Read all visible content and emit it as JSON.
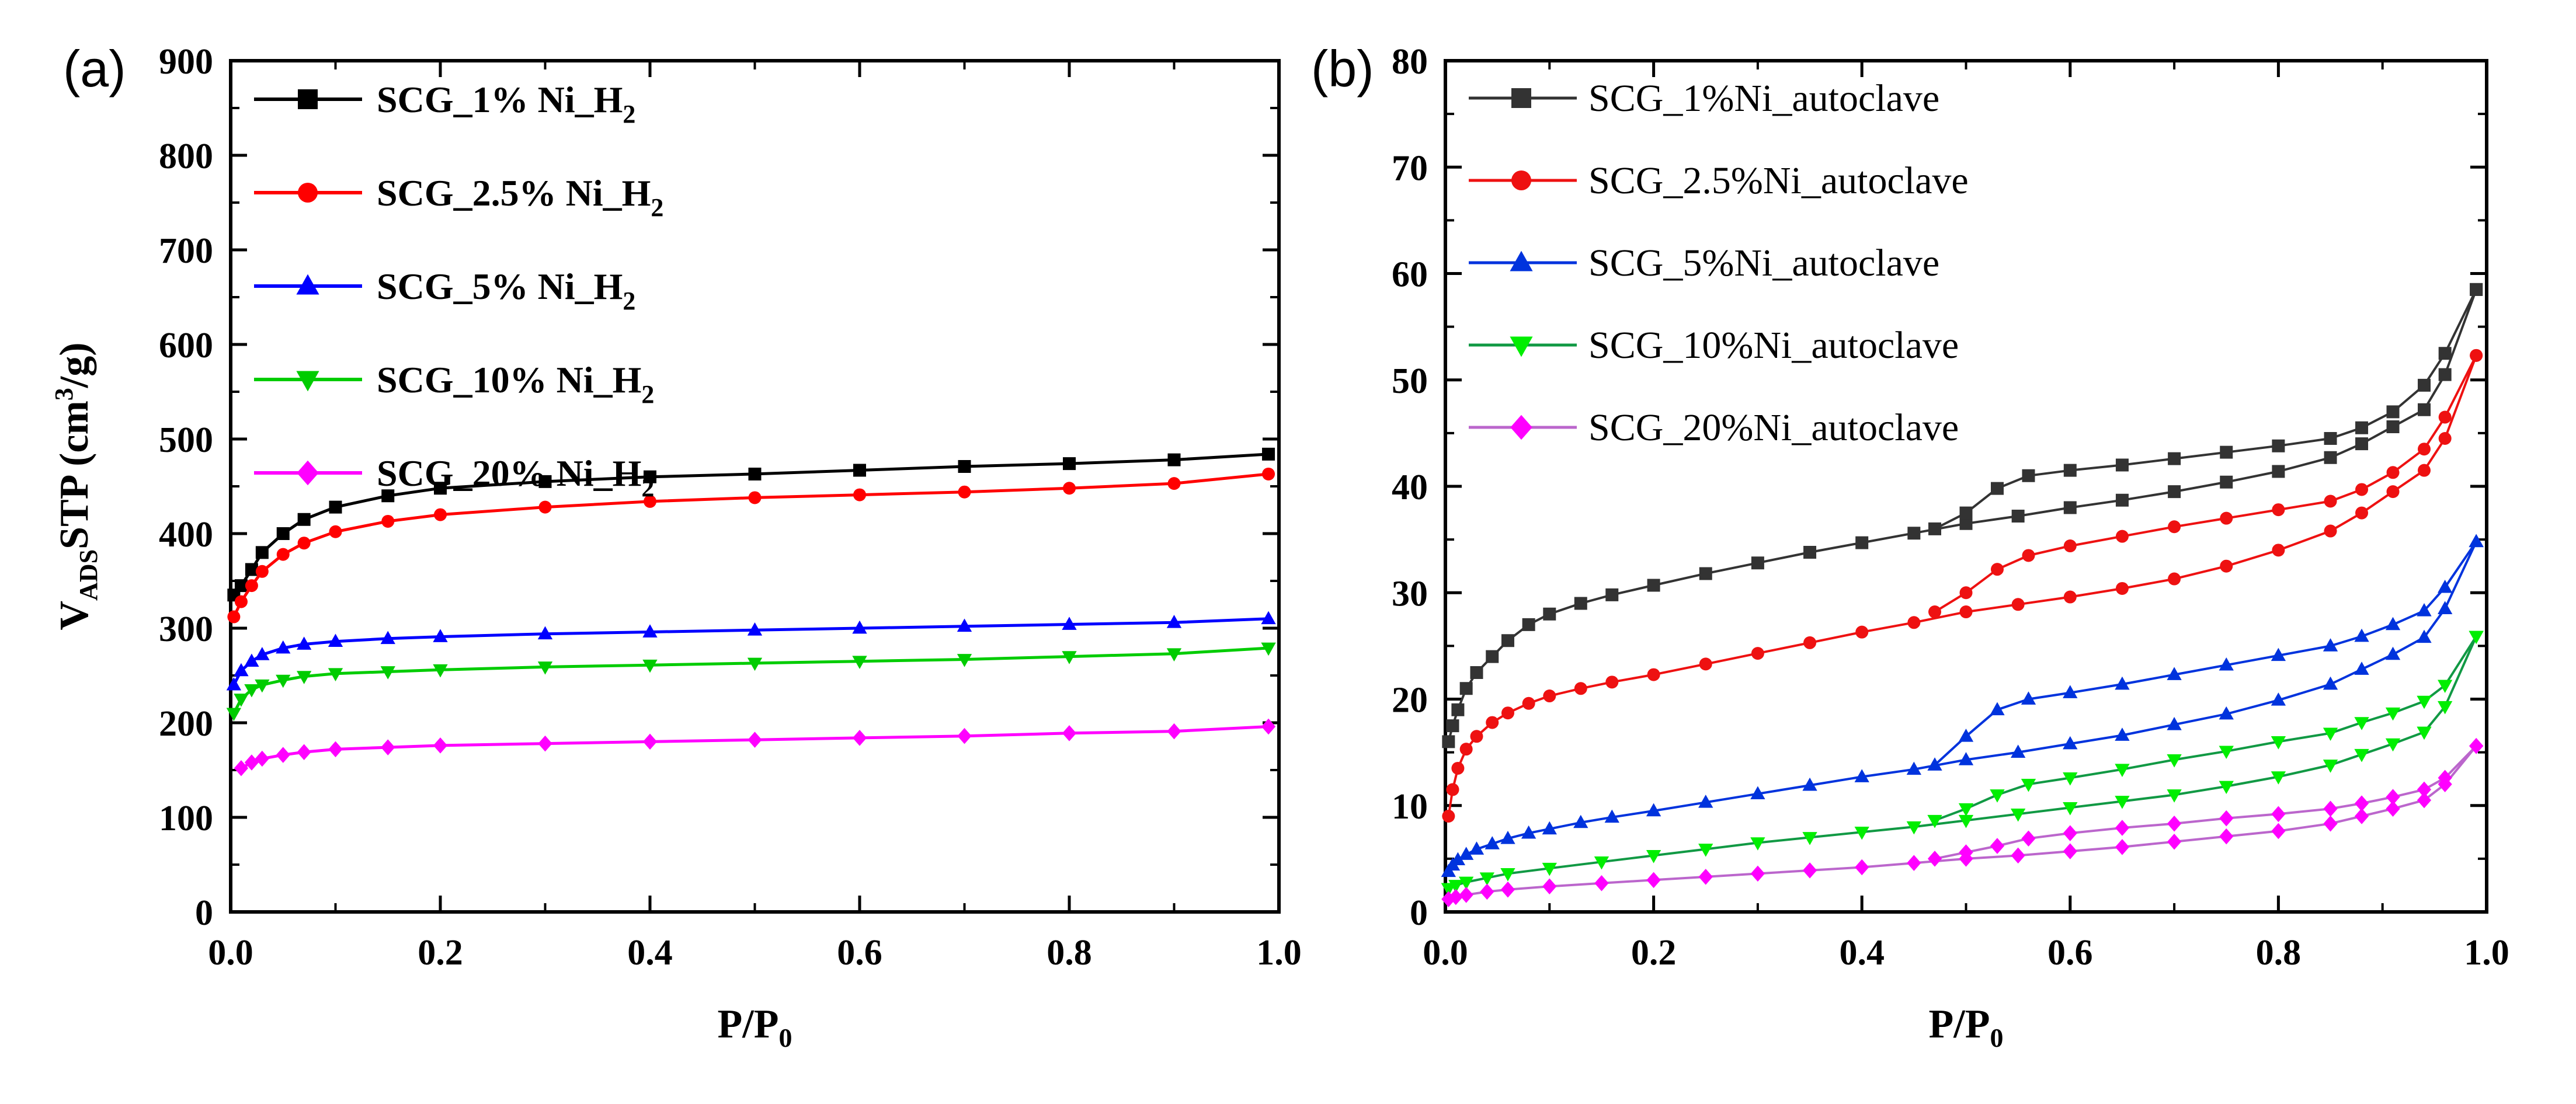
{
  "chart_data": [
    {
      "type": "line",
      "panel_label": "(a)",
      "xlabel": {
        "main": "P/P",
        "sub": "0"
      },
      "ylabel": {
        "v": "V",
        "sub": "ADS",
        "main": "STP (cm",
        "sup": "3",
        "end": "/g)"
      },
      "xlim": [
        0,
        1.0
      ],
      "ylim": [
        0,
        900
      ],
      "xticks": [
        0,
        0.2,
        0.4,
        0.6,
        0.8,
        1.0
      ],
      "xtick_labels": [
        "0.0",
        "0.2",
        "0.4",
        "0.6",
        "0.8",
        "1.0"
      ],
      "yticks": [
        0,
        100,
        200,
        300,
        400,
        500,
        600,
        700,
        800,
        900
      ],
      "ytick_labels": [
        "0",
        "100",
        "200",
        "300",
        "400",
        "500",
        "600",
        "700",
        "800",
        "900"
      ],
      "legend_position": "top-left",
      "series": [
        {
          "name": "SCG_1% Ni_H",
          "name_sub": "2",
          "color": "#000000",
          "marker": "square",
          "x": [
            0.003,
            0.01,
            0.02,
            0.03,
            0.05,
            0.07,
            0.1,
            0.15,
            0.2,
            0.3,
            0.4,
            0.5,
            0.6,
            0.7,
            0.8,
            0.9,
            0.99
          ],
          "y": [
            335,
            345,
            362,
            380,
            400,
            415,
            428,
            440,
            448,
            455,
            460,
            463,
            467,
            471,
            474,
            478,
            484
          ]
        },
        {
          "name": "SCG_2.5% Ni_H",
          "name_sub": "2",
          "color": "#ff0000",
          "marker": "circle",
          "x": [
            0.003,
            0.01,
            0.02,
            0.03,
            0.05,
            0.07,
            0.1,
            0.15,
            0.2,
            0.3,
            0.4,
            0.5,
            0.6,
            0.7,
            0.8,
            0.9,
            0.99
          ],
          "y": [
            312,
            328,
            345,
            360,
            378,
            390,
            402,
            413,
            420,
            428,
            434,
            438,
            441,
            444,
            448,
            453,
            463
          ]
        },
        {
          "name": "SCG_5% Ni_H",
          "name_sub": "2",
          "color": "#0000ff",
          "marker": "triangle-up",
          "x": [
            0.003,
            0.01,
            0.02,
            0.03,
            0.05,
            0.07,
            0.1,
            0.15,
            0.2,
            0.3,
            0.4,
            0.5,
            0.6,
            0.7,
            0.8,
            0.9,
            0.99
          ],
          "y": [
            240,
            255,
            265,
            272,
            279,
            283,
            286,
            289,
            291,
            294,
            296,
            298,
            300,
            302,
            304,
            306,
            310
          ]
        },
        {
          "name": "SCG_10% Ni_H",
          "name_sub": "2",
          "color": "#00cc00",
          "marker": "triangle-down",
          "x": [
            0.003,
            0.01,
            0.02,
            0.03,
            0.05,
            0.07,
            0.1,
            0.15,
            0.2,
            0.3,
            0.4,
            0.5,
            0.6,
            0.7,
            0.8,
            0.9,
            0.99
          ],
          "y": [
            210,
            225,
            235,
            240,
            245,
            249,
            252,
            254,
            256,
            259,
            261,
            263,
            265,
            267,
            270,
            273,
            279
          ]
        },
        {
          "name": "SCG_20% Ni_H",
          "name_sub": "2",
          "color": "#ff00ff",
          "marker": "diamond",
          "x": [
            0.01,
            0.02,
            0.03,
            0.05,
            0.07,
            0.1,
            0.15,
            0.2,
            0.3,
            0.4,
            0.5,
            0.6,
            0.7,
            0.8,
            0.9,
            0.99
          ],
          "y": [
            152,
            158,
            162,
            166,
            169,
            172,
            174,
            176,
            178,
            180,
            182,
            184,
            186,
            189,
            191,
            196
          ]
        }
      ]
    },
    {
      "type": "line",
      "panel_label": "(b)",
      "xlabel": {
        "main": "P/P",
        "sub": "0"
      },
      "xlim": [
        0,
        1.0
      ],
      "ylim": [
        0,
        80
      ],
      "xticks": [
        0,
        0.2,
        0.4,
        0.6,
        0.8,
        1.0
      ],
      "xtick_labels": [
        "0.0",
        "0.2",
        "0.4",
        "0.6",
        "0.8",
        "1.0"
      ],
      "yticks": [
        0,
        10,
        20,
        30,
        40,
        50,
        60,
        70,
        80
      ],
      "ytick_labels": [
        "0",
        "10",
        "20",
        "30",
        "40",
        "50",
        "60",
        "70",
        "80"
      ],
      "legend_position": "top-left",
      "series": [
        {
          "name": "SCG_1%Ni_autoclave",
          "color": "#333333",
          "marker": "square",
          "adsorption": {
            "x": [
              0.003,
              0.007,
              0.012,
              0.02,
              0.03,
              0.045,
              0.06,
              0.08,
              0.1,
              0.13,
              0.16,
              0.2,
              0.25,
              0.3,
              0.35,
              0.4,
              0.45,
              0.5,
              0.55,
              0.6,
              0.65,
              0.7,
              0.75,
              0.8,
              0.85,
              0.88,
              0.91,
              0.94,
              0.96,
              0.99
            ],
            "y": [
              16,
              17.5,
              19,
              21,
              22.5,
              24,
              25.5,
              27,
              28,
              29,
              29.8,
              30.7,
              31.8,
              32.8,
              33.8,
              34.7,
              35.6,
              36.5,
              37.2,
              38,
              38.7,
              39.5,
              40.4,
              41.4,
              42.7,
              44,
              45.6,
              47.2,
              50.5,
              58.5
            ]
          },
          "desorption": {
            "x": [
              0.99,
              0.96,
              0.94,
              0.91,
              0.88,
              0.85,
              0.8,
              0.75,
              0.7,
              0.65,
              0.6,
              0.56,
              0.53,
              0.5,
              0.47
            ],
            "y": [
              58.5,
              52.5,
              49.5,
              47,
              45.5,
              44.5,
              43.8,
              43.2,
              42.6,
              42,
              41.5,
              41,
              39.8,
              37.5,
              36
            ]
          }
        },
        {
          "name": "SCG_2.5%Ni_autoclave",
          "color": "#ee1111",
          "marker": "circle",
          "adsorption": {
            "x": [
              0.003,
              0.007,
              0.012,
              0.02,
              0.03,
              0.045,
              0.06,
              0.08,
              0.1,
              0.13,
              0.16,
              0.2,
              0.25,
              0.3,
              0.35,
              0.4,
              0.45,
              0.5,
              0.55,
              0.6,
              0.65,
              0.7,
              0.75,
              0.8,
              0.85,
              0.88,
              0.91,
              0.94,
              0.96,
              0.99
            ],
            "y": [
              9,
              11.5,
              13.5,
              15.3,
              16.5,
              17.8,
              18.7,
              19.6,
              20.3,
              21,
              21.6,
              22.3,
              23.3,
              24.3,
              25.3,
              26.3,
              27.2,
              28.2,
              28.9,
              29.6,
              30.4,
              31.3,
              32.5,
              34,
              35.8,
              37.5,
              39.5,
              41.5,
              44.5,
              52.3
            ]
          },
          "desorption": {
            "x": [
              0.99,
              0.96,
              0.94,
              0.91,
              0.88,
              0.85,
              0.8,
              0.75,
              0.7,
              0.65,
              0.6,
              0.56,
              0.53,
              0.5,
              0.47
            ],
            "y": [
              52.3,
              46.5,
              43.5,
              41.3,
              39.7,
              38.6,
              37.8,
              37,
              36.2,
              35.3,
              34.4,
              33.5,
              32.2,
              30,
              28.2
            ]
          }
        },
        {
          "name": "SCG_5%Ni_autoclave",
          "color": "#0033dd",
          "marker": "triangle-up",
          "adsorption": {
            "x": [
              0.003,
              0.007,
              0.012,
              0.02,
              0.03,
              0.045,
              0.06,
              0.08,
              0.1,
              0.13,
              0.16,
              0.2,
              0.25,
              0.3,
              0.35,
              0.4,
              0.45,
              0.5,
              0.55,
              0.6,
              0.65,
              0.7,
              0.75,
              0.8,
              0.85,
              0.88,
              0.91,
              0.94,
              0.96,
              0.99
            ],
            "y": [
              3.8,
              4.4,
              4.9,
              5.4,
              5.9,
              6.4,
              6.9,
              7.4,
              7.8,
              8.4,
              8.9,
              9.5,
              10.3,
              11.1,
              11.9,
              12.7,
              13.4,
              14.3,
              15,
              15.8,
              16.6,
              17.6,
              18.6,
              19.9,
              21.4,
              22.8,
              24.2,
              25.8,
              28.5,
              34.8
            ]
          },
          "desorption": {
            "x": [
              0.99,
              0.96,
              0.94,
              0.91,
              0.88,
              0.85,
              0.8,
              0.75,
              0.7,
              0.65,
              0.6,
              0.56,
              0.53,
              0.5,
              0.47
            ],
            "y": [
              34.8,
              30.5,
              28.3,
              27,
              25.9,
              25,
              24.1,
              23.2,
              22.3,
              21.4,
              20.6,
              20,
              19,
              16.5,
              13.8
            ]
          }
        },
        {
          "name": "SCG_10%Ni_autoclave",
          "color": "#119944",
          "marker": "triangle-down",
          "marker_color": "#00ee00",
          "adsorption": {
            "x": [
              0.003,
              0.01,
              0.02,
              0.04,
              0.06,
              0.1,
              0.15,
              0.2,
              0.25,
              0.3,
              0.35,
              0.4,
              0.45,
              0.5,
              0.55,
              0.6,
              0.65,
              0.7,
              0.75,
              0.8,
              0.85,
              0.88,
              0.91,
              0.94,
              0.96,
              0.99
            ],
            "y": [
              2.2,
              2.5,
              2.8,
              3.2,
              3.6,
              4.1,
              4.7,
              5.3,
              5.9,
              6.5,
              7,
              7.5,
              8,
              8.6,
              9.2,
              9.8,
              10.4,
              11,
              11.8,
              12.7,
              13.8,
              14.8,
              15.8,
              16.9,
              19.3,
              25.9
            ]
          },
          "desorption": {
            "x": [
              0.99,
              0.96,
              0.94,
              0.91,
              0.88,
              0.85,
              0.8,
              0.75,
              0.7,
              0.65,
              0.6,
              0.56,
              0.53,
              0.5,
              0.47
            ],
            "y": [
              25.9,
              21.3,
              19.8,
              18.7,
              17.8,
              16.8,
              16,
              15.1,
              14.3,
              13.4,
              12.6,
              12,
              11,
              9.7,
              8.6
            ]
          }
        },
        {
          "name": "SCG_20%Ni_autoclave",
          "color": "#bb66cc",
          "marker": "diamond",
          "marker_color": "#ff00ff",
          "adsorption": {
            "x": [
              0.003,
              0.01,
              0.02,
              0.04,
              0.06,
              0.1,
              0.15,
              0.2,
              0.25,
              0.3,
              0.35,
              0.4,
              0.45,
              0.5,
              0.55,
              0.6,
              0.65,
              0.7,
              0.75,
              0.8,
              0.85,
              0.88,
              0.91,
              0.94,
              0.96,
              0.99
            ],
            "y": [
              1.2,
              1.4,
              1.6,
              1.9,
              2.1,
              2.4,
              2.7,
              3,
              3.3,
              3.6,
              3.9,
              4.2,
              4.6,
              5,
              5.3,
              5.7,
              6.1,
              6.6,
              7.1,
              7.6,
              8.3,
              9,
              9.7,
              10.5,
              12,
              15.6
            ]
          },
          "desorption": {
            "x": [
              0.99,
              0.96,
              0.94,
              0.91,
              0.88,
              0.85,
              0.8,
              0.75,
              0.7,
              0.65,
              0.6,
              0.56,
              0.53,
              0.5,
              0.47
            ],
            "y": [
              15.6,
              12.6,
              11.5,
              10.8,
              10.2,
              9.7,
              9.2,
              8.8,
              8.3,
              7.9,
              7.4,
              6.9,
              6.2,
              5.6,
              5
            ]
          }
        }
      ]
    }
  ]
}
